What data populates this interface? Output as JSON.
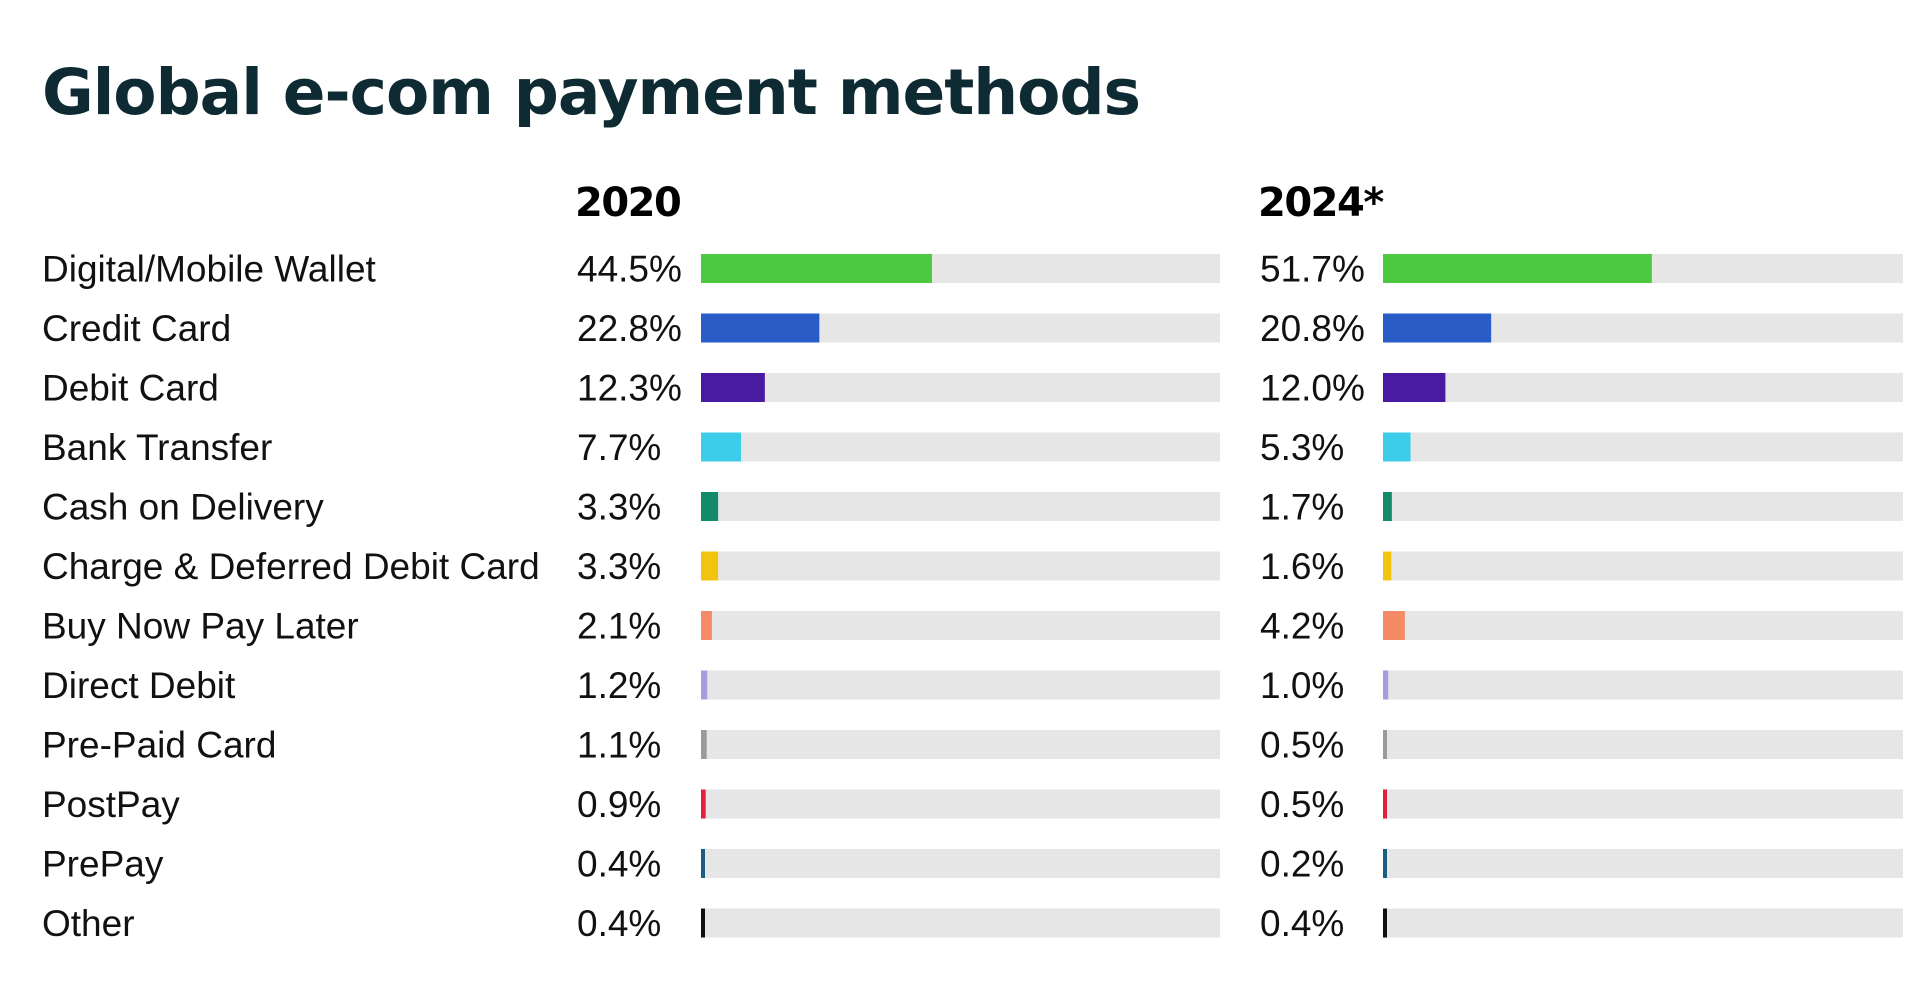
{
  "title": "Global e-com payment methods",
  "chart_data": {
    "type": "bar",
    "title": "Global e-com payment methods",
    "categories": [
      "Digital/Mobile Wallet",
      "Credit Card",
      "Debit Card",
      "Bank Transfer",
      "Cash on Delivery",
      "Charge & Deferred Debit Card",
      "Buy Now Pay Later",
      "Direct Debit",
      "Pre-Paid Card",
      "PostPay",
      "PrePay",
      "Other"
    ],
    "colors": [
      "#4cc93f",
      "#2a5cc8",
      "#4b1aa3",
      "#3ccdeb",
      "#138a6a",
      "#f2c40f",
      "#f48a66",
      "#a79ce0",
      "#9a9a9a",
      "#e0203c",
      "#1a5f82",
      "#111111"
    ],
    "track_color": "#e6e6e6",
    "xlim": [
      0,
      100
    ],
    "series": [
      {
        "name": "2020",
        "values": [
          44.5,
          22.8,
          12.3,
          7.7,
          3.3,
          3.3,
          2.1,
          1.2,
          1.1,
          0.9,
          0.4,
          0.4
        ],
        "labels": [
          "44.5%",
          "22.8%",
          "12.3%",
          "7.7%",
          "3.3%",
          "3.3%",
          "2.1%",
          "1.2%",
          "1.1%",
          "0.9%",
          "0.4%",
          "0.4%"
        ]
      },
      {
        "name": "2024*",
        "values": [
          51.7,
          20.8,
          12.0,
          5.3,
          1.7,
          1.6,
          4.2,
          1.0,
          0.5,
          0.5,
          0.2,
          0.4
        ],
        "labels": [
          "51.7%",
          "20.8%",
          "12.0%",
          "5.3%",
          "1.7%",
          "1.6%",
          "4.2%",
          "1.0%",
          "0.5%",
          "0.5%",
          "0.2%",
          "0.4%"
        ]
      }
    ]
  }
}
